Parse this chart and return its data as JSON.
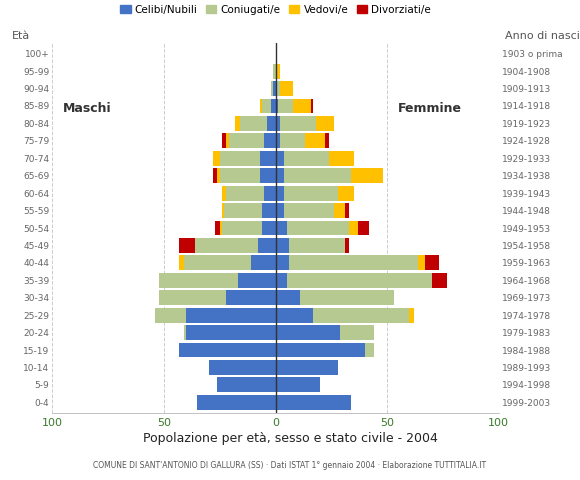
{
  "age_groups": [
    "0-4",
    "5-9",
    "10-14",
    "15-19",
    "20-24",
    "25-29",
    "30-34",
    "35-39",
    "40-44",
    "45-49",
    "50-54",
    "55-59",
    "60-64",
    "65-69",
    "70-74",
    "75-79",
    "80-84",
    "85-89",
    "90-94",
    "95-99",
    "100+"
  ],
  "birth_years": [
    "1999-2003",
    "1994-1998",
    "1989-1993",
    "1984-1988",
    "1979-1983",
    "1974-1978",
    "1969-1973",
    "1964-1968",
    "1959-1963",
    "1954-1958",
    "1949-1953",
    "1944-1948",
    "1939-1943",
    "1934-1938",
    "1929-1933",
    "1924-1928",
    "1919-1923",
    "1914-1918",
    "1909-1913",
    "1904-1908",
    "1903 o prima"
  ],
  "males": {
    "celibe": [
      35,
      26,
      30,
      43,
      40,
      40,
      22,
      17,
      11,
      8,
      6,
      6,
      5,
      7,
      7,
      5,
      4,
      2,
      1,
      0,
      0
    ],
    "coniugato": [
      0,
      0,
      0,
      0,
      1,
      14,
      30,
      35,
      30,
      28,
      18,
      17,
      17,
      18,
      18,
      16,
      12,
      4,
      1,
      1,
      0
    ],
    "vedovo": [
      0,
      0,
      0,
      0,
      0,
      0,
      0,
      0,
      2,
      0,
      1,
      1,
      2,
      1,
      3,
      1,
      2,
      1,
      0,
      0,
      0
    ],
    "divorziato": [
      0,
      0,
      0,
      0,
      0,
      0,
      0,
      0,
      0,
      7,
      2,
      0,
      0,
      2,
      0,
      2,
      0,
      0,
      0,
      0,
      0
    ]
  },
  "females": {
    "nubile": [
      34,
      20,
      28,
      40,
      29,
      17,
      11,
      5,
      6,
      6,
      5,
      4,
      4,
      4,
      4,
      2,
      2,
      1,
      0,
      0,
      0
    ],
    "coniugata": [
      0,
      0,
      0,
      4,
      15,
      43,
      42,
      65,
      58,
      25,
      28,
      22,
      24,
      30,
      20,
      11,
      16,
      7,
      2,
      0,
      0
    ],
    "vedova": [
      0,
      0,
      0,
      0,
      0,
      2,
      0,
      0,
      3,
      0,
      4,
      5,
      7,
      14,
      11,
      9,
      8,
      8,
      6,
      2,
      0
    ],
    "divorziata": [
      0,
      0,
      0,
      0,
      0,
      0,
      0,
      7,
      6,
      2,
      5,
      2,
      0,
      0,
      0,
      2,
      0,
      1,
      0,
      0,
      0
    ]
  },
  "colors": {
    "celibe": "#4472c4",
    "coniugato": "#b5c990",
    "vedovo": "#ffc000",
    "divorziato": "#c00000"
  },
  "xlim": 100,
  "title": "Popolazione per età, sesso e stato civile - 2004",
  "subtitle": "COMUNE DI SANT'ANTONIO DI GALLURA (SS) · Dati ISTAT 1° gennaio 2004 · Elaborazione TUTTITALIA.IT",
  "legend_labels": [
    "Celibi/Nubili",
    "Coniugati/e",
    "Vedovi/e",
    "Divorziati/e"
  ],
  "label_eta": "Età",
  "label_anno": "Anno di nascita",
  "label_maschi": "Maschi",
  "label_femmine": "Femmine",
  "background_color": "#ffffff",
  "grid_color": "#cccccc",
  "bar_height": 0.85
}
